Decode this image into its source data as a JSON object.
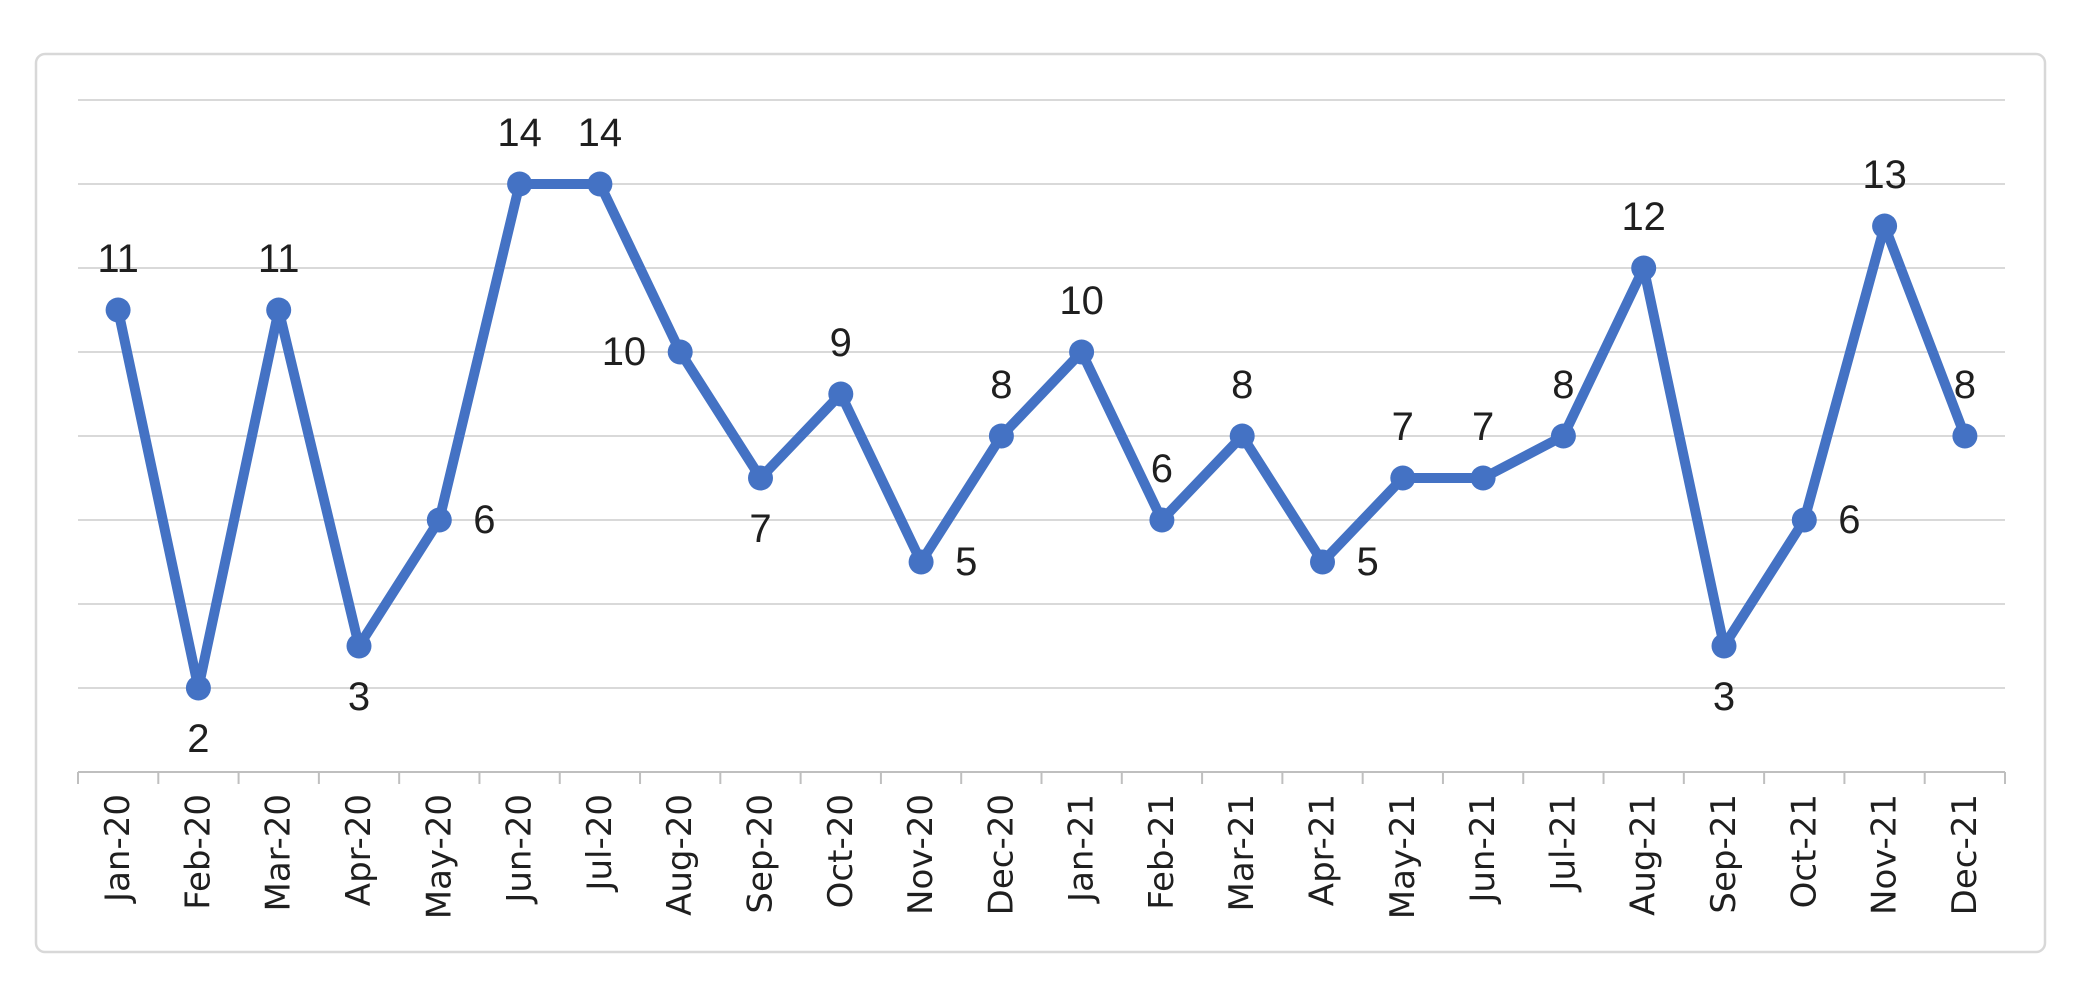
{
  "chart_data": {
    "type": "line",
    "title": "",
    "xlabel": "",
    "ylabel": "",
    "categories": [
      "Jan-20",
      "Feb-20",
      "Mar-20",
      "Apr-20",
      "May-20",
      "Jun-20",
      "Jul-20",
      "Aug-20",
      "Sep-20",
      "Oct-20",
      "Nov-20",
      "Dec-20",
      "Jan-21",
      "Feb-21",
      "Mar-21",
      "Apr-21",
      "May-21",
      "Jun-21",
      "Jul-21",
      "Aug-21",
      "Sep-21",
      "Oct-21",
      "Nov-21",
      "Dec-21"
    ],
    "series": [
      {
        "name": "",
        "values": [
          11,
          2,
          11,
          3,
          6,
          14,
          14,
          10,
          7,
          9,
          5,
          8,
          10,
          6,
          8,
          5,
          7,
          7,
          8,
          12,
          3,
          6,
          13,
          8
        ]
      }
    ],
    "data_labels": [
      "11",
      "2",
      "11",
      "3",
      "6",
      "14",
      "14",
      "10",
      "7",
      "9",
      "5",
      "8",
      "10",
      "6",
      "8",
      "5",
      "7",
      "7",
      "8",
      "12",
      "3",
      "6",
      "13",
      "8"
    ],
    "data_label_positions": [
      "above",
      "below",
      "above",
      "below",
      "right",
      "above",
      "above",
      "left",
      "below",
      "above",
      "right",
      "above",
      "above",
      "above",
      "above",
      "right",
      "above",
      "above",
      "above",
      "above",
      "below",
      "right",
      "above",
      "above"
    ],
    "ylim": [
      0,
      16
    ],
    "y_gridline_step": 2,
    "y_axis_labels_visible": false,
    "grid": "horizontal",
    "legend_position": "none",
    "marker": "circle",
    "x_tick_label_rotation_degrees": -90
  },
  "colors": {
    "line": "#4472C4",
    "marker": "#4472C4",
    "gridline": "#D9D9D9",
    "axis_line": "#BFBFBF",
    "tick": "#BFBFBF",
    "data_label": "#1f1f1f",
    "axis_label": "#1f1f1f",
    "chart_border": "#D8D8D8",
    "background": "#FFFFFF"
  }
}
